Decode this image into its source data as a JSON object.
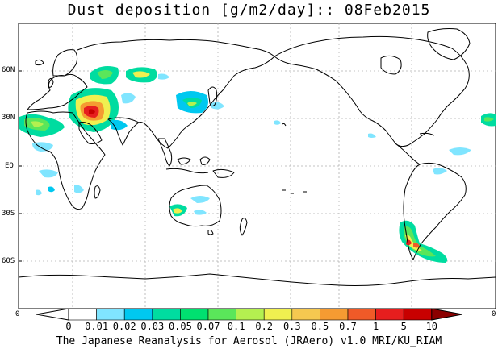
{
  "title": "Dust deposition [g/m2/day]:: 08Feb2015",
  "footer": "The Japanese Reanalysis for Aerosol (JRAero) v1.0 MRI/KU_RIAM",
  "lat_labels": [
    "60N",
    "30N",
    "EQ",
    "30S",
    "60S"
  ],
  "edge_left": "0",
  "edge_right": "0",
  "colorbar": {
    "labels": [
      "0",
      "0.01",
      "0.02",
      "0.03",
      "0.05",
      "0.07",
      "0.1",
      "0.2",
      "0.3",
      "0.5",
      "0.7",
      "1",
      "5",
      "10"
    ],
    "colors": [
      "#ffffff",
      "#ffffff",
      "#80e5ff",
      "#00c8f0",
      "#00dca0",
      "#00e070",
      "#5ae65a",
      "#b4f050",
      "#f0f050",
      "#f5c850",
      "#f59b32",
      "#f05a28",
      "#e61e1e",
      "#c80000",
      "#8c0000"
    ]
  }
}
